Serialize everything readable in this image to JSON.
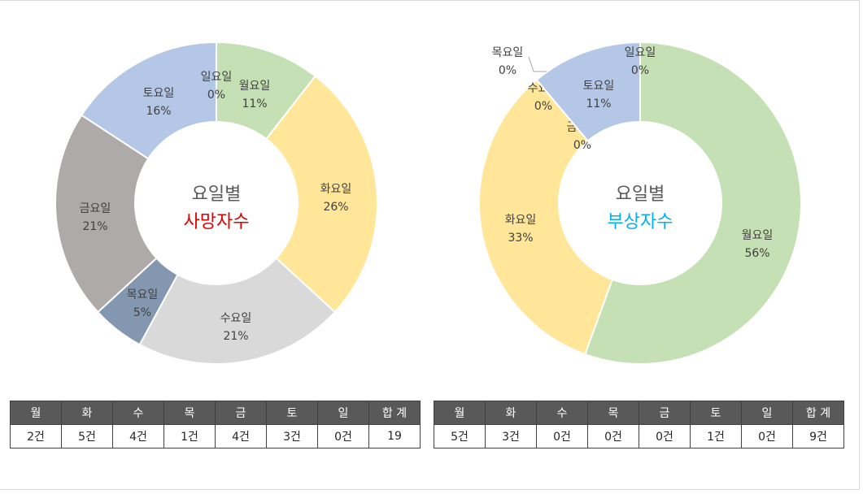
{
  "chart_data": [
    {
      "type": "donut",
      "title": [
        "요일별",
        "사망자수"
      ],
      "title_colors": [
        "#595959",
        "#e00000"
      ],
      "slices": [
        {
          "label": "월요일",
          "value": 2,
          "pct": "11%",
          "color": "#c5e0b4"
        },
        {
          "label": "화요일",
          "value": 5,
          "pct": "26%",
          "color": "#ffe699"
        },
        {
          "label": "수요일",
          "value": 4,
          "pct": "21%",
          "color": "#d9d9d9"
        },
        {
          "label": "목요일",
          "value": 1,
          "pct": "5%",
          "color": "#8497b0"
        },
        {
          "label": "금요일",
          "value": 4,
          "pct": "21%",
          "color": "#aeaaaa"
        },
        {
          "label": "토요일",
          "value": 3,
          "pct": "16%",
          "color": "#b4c7e7"
        },
        {
          "label": "일요일",
          "value": 0,
          "pct": "0%",
          "color": "#f4b183"
        }
      ]
    },
    {
      "type": "donut",
      "title": [
        "요일별",
        "부상자수"
      ],
      "title_colors": [
        "#595959",
        "#00b0f0"
      ],
      "slices": [
        {
          "label": "월요일",
          "value": 5,
          "pct": "56%",
          "color": "#c5e0b4"
        },
        {
          "label": "화요일",
          "value": 3,
          "pct": "33%",
          "color": "#ffe699"
        },
        {
          "label": "수요일",
          "value": 0,
          "pct": "0%",
          "color": "#d9d9d9"
        },
        {
          "label": "목요일",
          "value": 0,
          "pct": "0%",
          "color": "#8497b0"
        },
        {
          "label": "금요일",
          "value": 0,
          "pct": "0%",
          "color": "#aeaaaa"
        },
        {
          "label": "토요일",
          "value": 1,
          "pct": "11%",
          "color": "#b4c7e7"
        },
        {
          "label": "일요일",
          "value": 0,
          "pct": "0%",
          "color": "#f4b183"
        }
      ]
    }
  ],
  "tables": [
    {
      "headers": [
        "월",
        "화",
        "수",
        "목",
        "금",
        "토",
        "일",
        "합 계"
      ],
      "values": [
        "2건",
        "5건",
        "4건",
        "1건",
        "4건",
        "3건",
        "0건",
        "19"
      ]
    },
    {
      "headers": [
        "월",
        "화",
        "수",
        "목",
        "금",
        "토",
        "일",
        "합 계"
      ],
      "values": [
        "5건",
        "3건",
        "0건",
        "0건",
        "0건",
        "1건",
        "0건",
        "9건"
      ]
    }
  ]
}
